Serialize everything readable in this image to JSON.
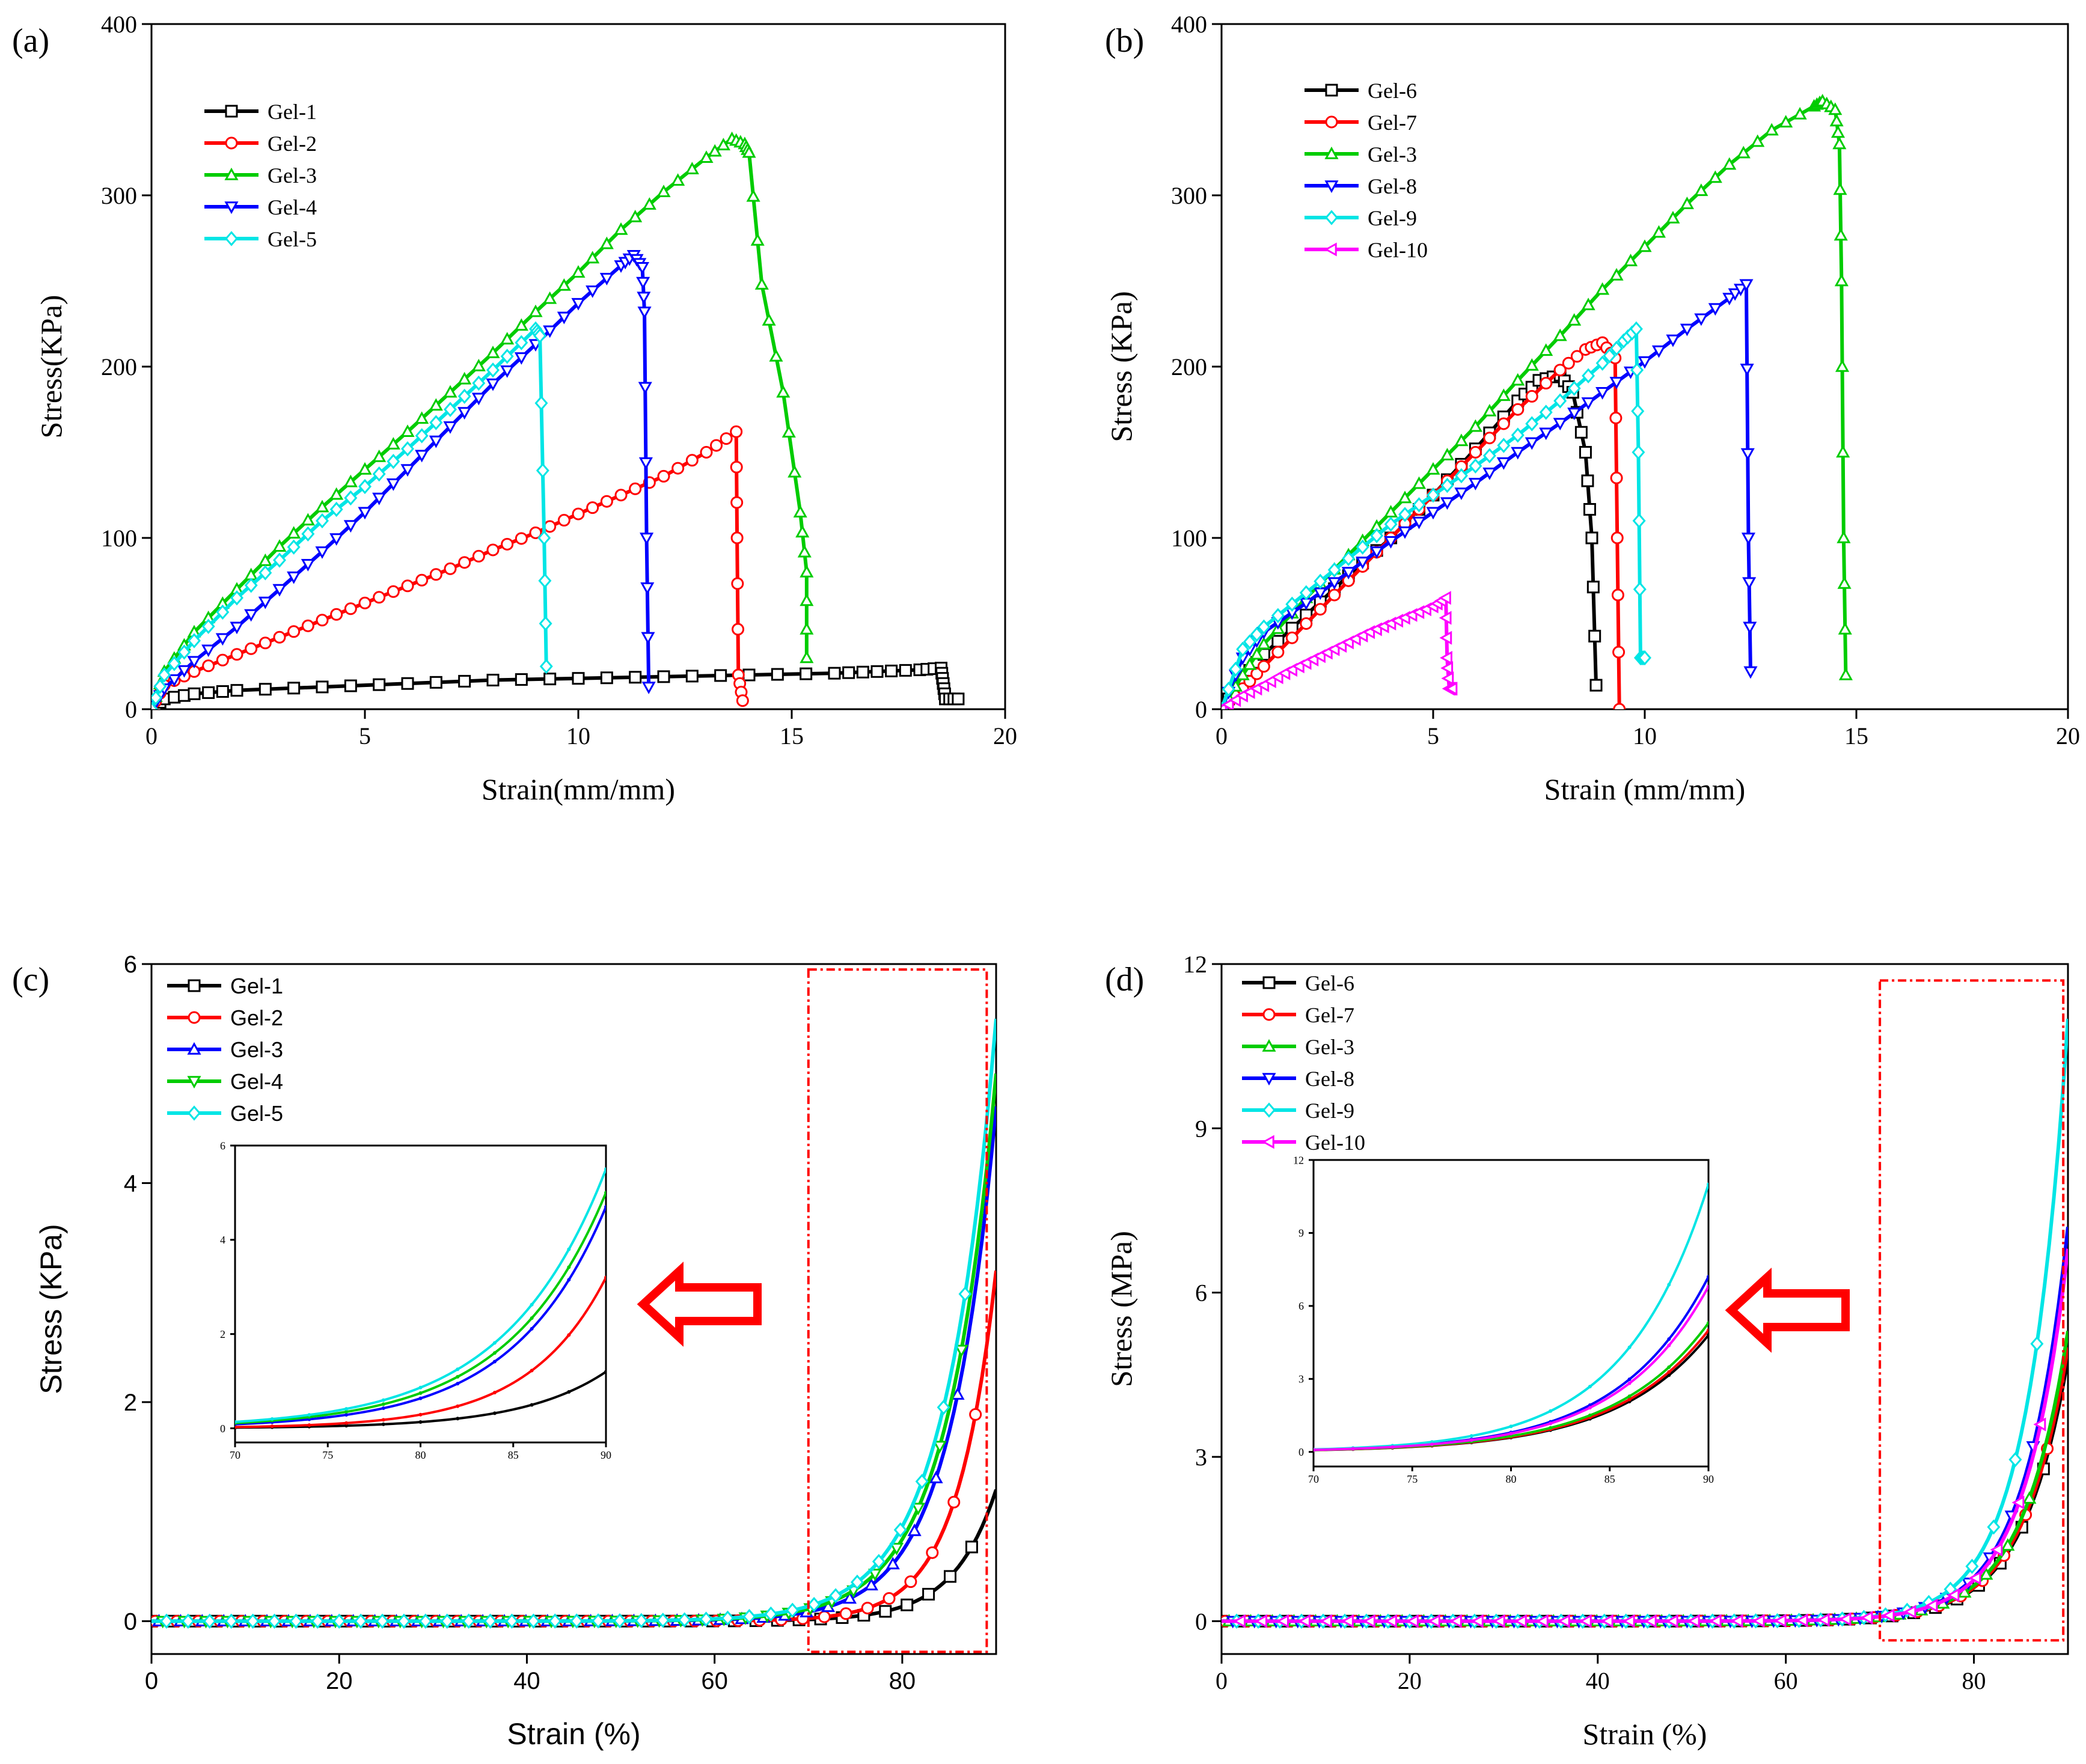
{
  "chart_data": [
    {
      "id": "a",
      "type": "line",
      "panel_label": "(a)",
      "xlabel": "Strain(mm/mm)",
      "ylabel": "Stress(KPa)",
      "xlim": [
        0,
        20
      ],
      "ylim": [
        0,
        400
      ],
      "xticks": [
        "0",
        "5",
        "10",
        "15",
        "20"
      ],
      "yticks": [
        "0",
        "100",
        "200",
        "300",
        "400"
      ],
      "legend_position": "top-left",
      "series": [
        {
          "name": "Gel-1",
          "color": "#000000",
          "marker": "square",
          "x": [
            0,
            0.3,
            1,
            2,
            4,
            6,
            8,
            10,
            12,
            14,
            16,
            17,
            18,
            18.5,
            18.55,
            18.6,
            18.9
          ],
          "y": [
            0,
            6,
            9,
            11,
            13,
            15,
            17,
            18,
            19,
            20,
            21,
            22,
            23,
            24,
            15,
            6,
            6
          ]
        },
        {
          "name": "Gel-2",
          "color": "#ff0000",
          "marker": "circle",
          "x": [
            0,
            0.3,
            1,
            2,
            3,
            4,
            5,
            6,
            7,
            8,
            9,
            10,
            11,
            12,
            13,
            13.7,
            13.72,
            13.75,
            13.85
          ],
          "y": [
            0,
            14,
            22,
            32,
            42,
            52,
            62,
            72,
            82,
            93,
            103,
            114,
            125,
            136,
            150,
            162,
            100,
            20,
            5
          ]
        },
        {
          "name": "Gel-3",
          "color": "#00cc00",
          "marker": "triangle-up",
          "x": [
            0,
            0.3,
            1,
            2,
            3,
            4,
            5,
            6,
            7,
            8,
            9,
            10,
            11,
            12,
            13,
            13.6,
            13.9,
            14.0,
            14.3,
            14.8,
            15.2,
            15.35,
            15.35
          ],
          "y": [
            0,
            22,
            45,
            70,
            95,
            118,
            140,
            162,
            185,
            208,
            232,
            255,
            280,
            302,
            322,
            333,
            330,
            325,
            248,
            185,
            115,
            80,
            30
          ]
        },
        {
          "name": "Gel-4",
          "color": "#0000ff",
          "marker": "triangle-down",
          "x": [
            0,
            0.3,
            1,
            2,
            3,
            4,
            5,
            6,
            7,
            8,
            9,
            10,
            11,
            11.3,
            11.5,
            11.55,
            11.6,
            11.65
          ],
          "y": [
            0,
            12,
            28,
            48,
            70,
            92,
            115,
            140,
            165,
            190,
            213,
            237,
            259,
            265,
            258,
            232,
            100,
            13
          ]
        },
        {
          "name": "Gel-5",
          "color": "#00e5e5",
          "marker": "diamond",
          "x": [
            0,
            0.3,
            1,
            2,
            3,
            4,
            5,
            6,
            7,
            8,
            9,
            9.1,
            9.2,
            9.25
          ],
          "y": [
            0,
            20,
            40,
            65,
            87,
            110,
            130,
            152,
            175,
            198,
            222,
            218,
            100,
            25
          ]
        }
      ]
    },
    {
      "id": "b",
      "type": "line",
      "panel_label": "(b)",
      "xlabel": "Strain (mm/mm)",
      "ylabel": "Stress (KPa)",
      "xlim": [
        0,
        20
      ],
      "ylim": [
        0,
        400
      ],
      "xticks": [
        "0",
        "5",
        "10",
        "15",
        "20"
      ],
      "yticks": [
        "0",
        "100",
        "200",
        "300",
        "400"
      ],
      "legend_position": "top-left",
      "series": [
        {
          "name": "Gel-6",
          "color": "#000000",
          "marker": "square",
          "x": [
            0,
            0.5,
            1,
            2,
            3,
            4,
            5,
            6,
            7,
            7.5,
            8.0,
            8.3,
            8.6,
            8.75,
            8.85
          ],
          "y": [
            0,
            18,
            32,
            55,
            78,
            100,
            125,
            152,
            180,
            192,
            195,
            185,
            150,
            100,
            14
          ]
        },
        {
          "name": "Gel-7",
          "color": "#ff0000",
          "marker": "circle",
          "x": [
            0,
            0.5,
            1,
            2,
            3,
            4,
            5,
            6,
            7,
            8,
            8.6,
            9.0,
            9.3,
            9.35,
            9.4
          ],
          "y": [
            0,
            12,
            25,
            50,
            75,
            100,
            125,
            150,
            175,
            198,
            210,
            214,
            205,
            100,
            0
          ]
        },
        {
          "name": "Gel-3",
          "color": "#00cc00",
          "marker": "triangle-up",
          "x": [
            0,
            0.5,
            1,
            2,
            3,
            4,
            5,
            6,
            7,
            8,
            9,
            10,
            11,
            12,
            13,
            14,
            14.2,
            14.5,
            14.6,
            14.65,
            14.7,
            14.75
          ],
          "y": [
            0,
            20,
            38,
            65,
            90,
            115,
            140,
            165,
            192,
            218,
            245,
            270,
            295,
            318,
            338,
            352,
            355,
            350,
            330,
            250,
            100,
            20
          ]
        },
        {
          "name": "Gel-8",
          "color": "#0000ff",
          "marker": "triangle-down",
          "x": [
            0,
            0.5,
            1,
            2,
            3,
            4,
            5,
            6,
            7,
            8,
            9,
            10,
            11,
            12,
            12.4,
            12.45,
            12.5
          ],
          "y": [
            0,
            30,
            45,
            62,
            80,
            98,
            115,
            132,
            150,
            167,
            185,
            203,
            222,
            240,
            248,
            100,
            22
          ]
        },
        {
          "name": "Gel-9",
          "color": "#00e5e5",
          "marker": "diamond",
          "x": [
            0,
            0.5,
            1,
            2,
            3,
            4,
            5,
            6,
            7,
            8,
            9,
            9.5,
            9.8,
            9.85,
            9.9,
            10.0
          ],
          "y": [
            0,
            35,
            48,
            68,
            88,
            108,
            125,
            142,
            160,
            180,
            202,
            215,
            222,
            150,
            30,
            30
          ]
        },
        {
          "name": "Gel-10",
          "color": "#ff00ff",
          "marker": "triangle-left",
          "x": [
            0,
            0.5,
            1,
            1.5,
            2,
            2.5,
            3,
            3.5,
            4,
            4.5,
            5,
            5.3,
            5.33,
            5.38,
            5.45
          ],
          "y": [
            0,
            8,
            14,
            21,
            27,
            33,
            39,
            45,
            50,
            55,
            60,
            65,
            30,
            12,
            12
          ]
        }
      ]
    },
    {
      "id": "c",
      "type": "line",
      "panel_label": "(c)",
      "xlabel": "Strain (%)",
      "ylabel": "Stress (KPa)",
      "xlim": [
        0,
        90
      ],
      "ylim": [
        -0.3,
        6
      ],
      "xticks": [
        "0",
        "20",
        "40",
        "60",
        "80"
      ],
      "yticks": [
        "0",
        "2",
        "4",
        "6"
      ],
      "legend_position": "top-left",
      "highlight_region": {
        "x": [
          70,
          89
        ],
        "y": [
          -0.28,
          5.95
        ]
      },
      "inset": {
        "xlim": [
          70,
          90
        ],
        "ylim": [
          -0.3,
          6
        ],
        "xticks": [
          "70",
          "75",
          "80",
          "85",
          "90"
        ],
        "yticks": [
          "0",
          "2",
          "4",
          "6"
        ]
      },
      "series": [
        {
          "name": "Gel-1",
          "color": "#000000",
          "marker": "square",
          "final": 1.2,
          "k": 0.22
        },
        {
          "name": "Gel-2",
          "color": "#ff0000",
          "marker": "circle",
          "final": 3.2,
          "k": 0.24
        },
        {
          "name": "Gel-3",
          "color": "#0000ff",
          "marker": "triangle-up",
          "final": 4.7,
          "k": 0.2
        },
        {
          "name": "Gel-4",
          "color": "#00cc00",
          "marker": "triangle-down",
          "final": 5.0,
          "k": 0.19
        },
        {
          "name": "Gel-5",
          "color": "#00e5e5",
          "marker": "diamond",
          "final": 5.5,
          "k": 0.185
        }
      ]
    },
    {
      "id": "d",
      "type": "line",
      "panel_label": "(d)",
      "xlabel": "Strain (%)",
      "ylabel": "Stress (MPa)",
      "xlim": [
        0,
        90
      ],
      "ylim": [
        -0.6,
        12
      ],
      "xticks": [
        "0",
        "20",
        "40",
        "60",
        "80"
      ],
      "yticks": [
        "0",
        "3",
        "6",
        "9",
        "12"
      ],
      "legend_position": "top-left",
      "highlight_region": {
        "x": [
          70,
          89.5
        ],
        "y": [
          -0.35,
          11.7
        ]
      },
      "inset": {
        "xlim": [
          70,
          90
        ],
        "ylim": [
          -0.6,
          12
        ],
        "xticks": [
          "70",
          "75",
          "80",
          "85",
          "90"
        ],
        "yticks": [
          "0",
          "3",
          "6",
          "9",
          "12"
        ]
      },
      "series": [
        {
          "name": "Gel-6",
          "color": "#000000",
          "marker": "square",
          "final": 4.8,
          "k": 0.21
        },
        {
          "name": "Gel-7",
          "color": "#ff0000",
          "marker": "circle",
          "final": 5.0,
          "k": 0.21
        },
        {
          "name": "Gel-3",
          "color": "#00cc00",
          "marker": "triangle-up",
          "final": 5.3,
          "k": 0.21
        },
        {
          "name": "Gel-8",
          "color": "#0000ff",
          "marker": "triangle-down",
          "final": 7.2,
          "k": 0.22
        },
        {
          "name": "Gel-9",
          "color": "#00e5e5",
          "marker": "diamond",
          "final": 11.0,
          "k": 0.235
        },
        {
          "name": "Gel-10",
          "color": "#ff00ff",
          "marker": "triangle-left",
          "final": 6.8,
          "k": 0.22
        }
      ]
    }
  ]
}
